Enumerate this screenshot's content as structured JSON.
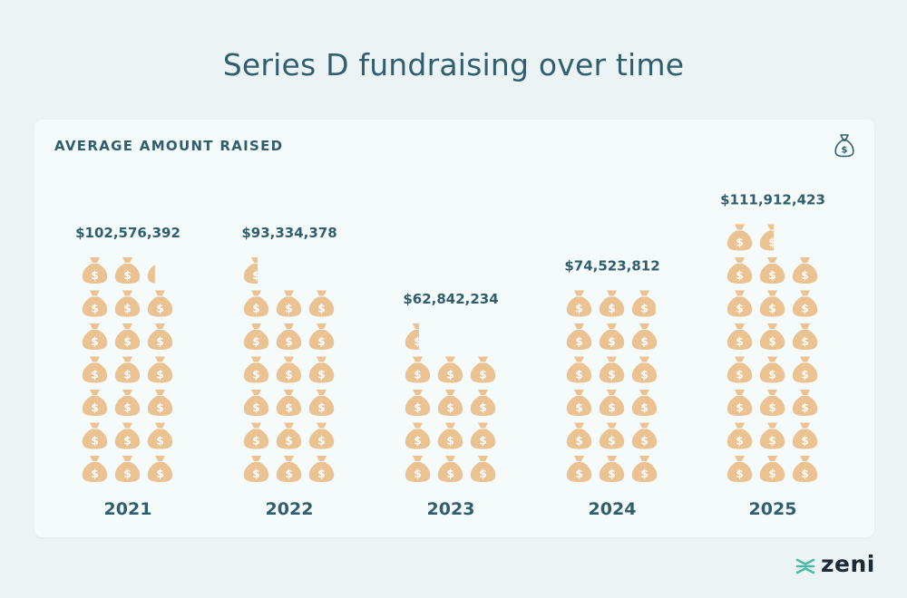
{
  "title": "Series D fundraising over time",
  "brand": {
    "name": "zeni"
  },
  "icons": {
    "card_icon": "money-bag-icon",
    "mark_icon": "money-bag-icon",
    "brand_icon": "zeni-logo-icon"
  },
  "colors": {
    "bag": "#ebc291",
    "bag_symbol": "#ffffff",
    "text": "#2f5e6e",
    "brand_teal": "#4eb8a4"
  },
  "chart_data": {
    "type": "bar",
    "title": "AVERAGE AMOUNT RAISED",
    "categories": [
      "2021",
      "2022",
      "2023",
      "2024",
      "2025"
    ],
    "values": [
      102576392,
      93334378,
      62842234,
      74523812,
      111912423
    ],
    "value_labels": [
      "$102,576,392",
      "$93,334,378",
      "$62,842,234",
      "$74,523,812",
      "$111,912,423"
    ],
    "bag_rows_full": [
      6,
      6,
      4,
      5,
      7
    ],
    "bag_partial_units": [
      2.3,
      0.5,
      0.5,
      2.8,
      1.5
    ]
  }
}
